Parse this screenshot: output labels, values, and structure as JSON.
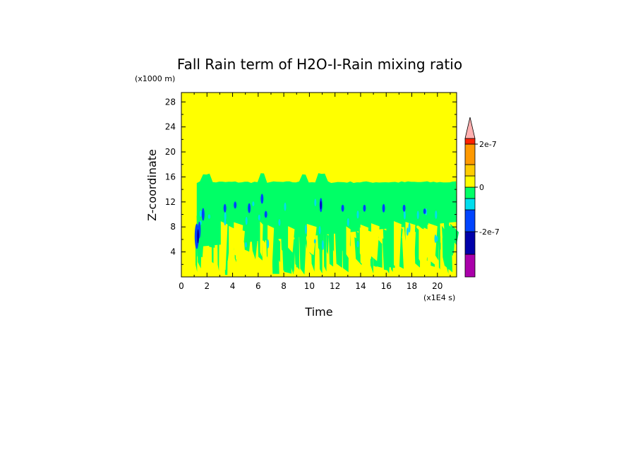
{
  "chart_data": {
    "type": "heatmap",
    "title": "Fall Rain term of H2O-I-Rain mixing ratio",
    "xlabel": "Time",
    "ylabel": "Z-coordinate",
    "x_multiplier": "(x1E4 s)",
    "y_multiplier": "(x1000 m)",
    "xlim": [
      0,
      21.5
    ],
    "ylim": [
      0,
      29.5
    ],
    "x_ticks": [
      0,
      2,
      4,
      6,
      8,
      10,
      12,
      14,
      16,
      18,
      20
    ],
    "y_ticks": [
      4,
      8,
      12,
      16,
      20,
      24,
      28
    ],
    "colorbar": {
      "labels": [
        {
          "value": 2e-07,
          "text": "2e-7"
        },
        {
          "value": 0,
          "text": "0"
        },
        {
          "value": -2e-07,
          "text": "-2e-7"
        }
      ],
      "levels": [
        {
          "color": "#aa00aa"
        },
        {
          "color": "#0000aa"
        },
        {
          "color": "#0044ff"
        },
        {
          "color": "#00ddee"
        },
        {
          "color": "#00ff66"
        },
        {
          "color": "#ffff00"
        },
        {
          "color": "#ffcc00"
        },
        {
          "color": "#ff9900"
        },
        {
          "color": "#ff2200"
        },
        {
          "color": "#ffb0b0"
        }
      ]
    },
    "regions": {
      "background_color": "#ffff00",
      "upper_band": {
        "x_start": 1.2,
        "x_end": 21.5,
        "z_bottom": 8.8,
        "z_top": 15.2,
        "color": "#00ff66"
      },
      "lower_patches_color": "#00ff66",
      "blue_streak_color": "#0044ff",
      "cyan_streak_color": "#00ddee",
      "dark_streak_color": "#0000aa"
    }
  }
}
